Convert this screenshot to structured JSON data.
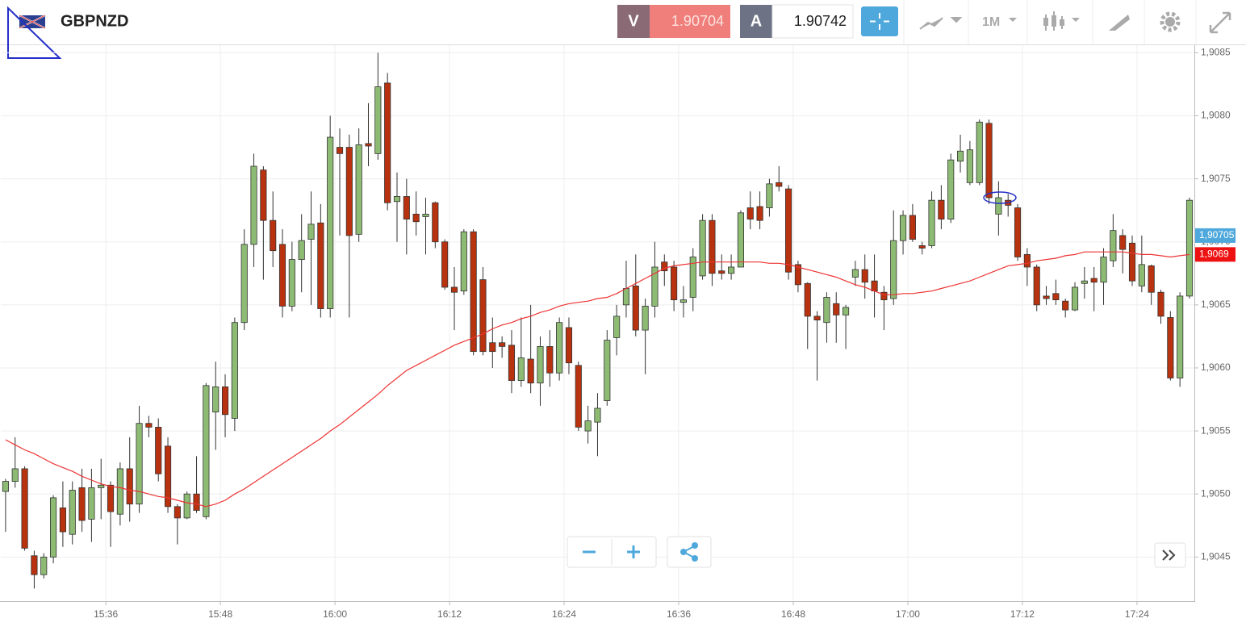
{
  "header": {
    "symbol": "GBPNZD",
    "bid_label": "V",
    "bid": "1.90704",
    "ask_label": "A",
    "ask": "1.90742",
    "timeframe": "1M"
  },
  "chart_data": {
    "type": "candlestick",
    "categories": [
      null,
      null,
      null,
      null,
      null,
      null,
      null,
      null,
      null,
      null,
      null,
      "15:36",
      null,
      null,
      null,
      null,
      null,
      null,
      null,
      null,
      null,
      null,
      null,
      "15:48",
      null,
      null,
      null,
      null,
      null,
      null,
      null,
      null,
      null,
      null,
      null,
      "16:00",
      null,
      null,
      null,
      null,
      null,
      null,
      null,
      null,
      null,
      null,
      null,
      "16:12",
      null,
      null,
      null,
      null,
      null,
      null,
      null,
      null,
      null,
      null,
      null,
      "16:24",
      null,
      null,
      null,
      null,
      null,
      null,
      null,
      null,
      null,
      null,
      null,
      "16:36",
      null,
      null,
      null,
      null,
      null,
      null,
      null,
      null,
      null,
      null,
      null,
      "16:48",
      null,
      null,
      null,
      null,
      null,
      null,
      null,
      null,
      null,
      null,
      null,
      "17:00",
      null,
      null,
      null,
      null,
      null,
      null,
      null,
      null,
      null,
      null,
      null,
      "17:12",
      null,
      null,
      null,
      null,
      null,
      null,
      null,
      null,
      null,
      null,
      null,
      "17:24",
      null,
      null,
      null,
      null,
      null
    ],
    "open": [
      1.90502,
      1.9051,
      1.9052,
      1.90451,
      1.90436,
      1.9045,
      1.90489,
      1.90468,
      1.90505,
      1.9048,
      1.90505,
      1.90507,
      1.90484,
      1.9052,
      1.90492,
      1.90556,
      1.90553,
      1.90538,
      1.9049,
      1.90481,
      1.905,
      1.90482,
      1.90565,
      1.90585,
      1.9056,
      1.90636,
      1.90698,
      1.90757,
      1.90717,
      1.90698,
      1.90649,
      1.90686,
      1.90702,
      1.90715,
      1.90647,
      1.90775,
      1.90775,
      1.90706,
      1.90778,
      1.9077,
      1.90826,
      1.90732,
      1.90736,
      1.90722,
      1.9072,
      1.90731,
      1.907,
      1.90664,
      1.90661,
      1.90708,
      1.9067,
      1.9062,
      1.9062,
      1.90618,
      1.9059,
      1.90607,
      1.90588,
      1.90617,
      1.90596,
      1.90632,
      1.90602,
      1.9055,
      1.90557,
      1.90574,
      1.90624,
      1.9065,
      1.90665,
      1.9063,
      1.90649,
      1.90684,
      1.9068,
      1.90652,
      1.90656,
      1.90673,
      1.90717,
      1.90677,
      1.90675,
      1.9068,
      1.90727,
      1.90728,
      1.90727,
      1.90747,
      1.90742,
      1.90682,
      1.90667,
      1.90641,
      1.90636,
      1.90651,
      1.90642,
      1.90672,
      1.90678,
      1.90669,
      1.9066,
      1.90655,
      1.90701,
      1.90721,
      1.90697,
      1.90697,
      1.90733,
      1.90718,
      1.90764,
      1.90747,
      1.90747,
      1.90794,
      1.90722,
      1.90733,
      1.90727,
      1.9069,
      1.9068,
      1.90657,
      1.90659,
      1.90653,
      1.90646,
      1.90667,
      1.90671,
      1.90668,
      1.90685,
      1.90705,
      1.90699,
      1.90665,
      1.90681,
      1.9066,
      1.9064,
      1.90592,
      1.90657
    ],
    "high": [
      1.90512,
      1.90545,
      1.90522,
      1.90455,
      1.90453,
      1.90499,
      1.9051,
      1.9051,
      1.9052,
      1.9052,
      1.90528,
      1.9051,
      1.90525,
      1.90545,
      1.9057,
      1.90562,
      1.9056,
      1.90545,
      1.90492,
      1.90502,
      1.9053,
      1.90588,
      1.90605,
      1.90595,
      1.9064,
      1.9071,
      1.9077,
      1.9076,
      1.9074,
      1.9071,
      1.907,
      1.90722,
      1.9074,
      1.9073,
      1.908,
      1.9079,
      1.90785,
      1.9079,
      1.9081,
      1.9085,
      1.90834,
      1.90755,
      1.9075,
      1.9074,
      1.90735,
      1.90732,
      1.90702,
      1.9068,
      1.9071,
      1.9071,
      1.9068,
      1.9064,
      1.90625,
      1.9063,
      1.9064,
      1.9065,
      1.90625,
      1.9063,
      1.9064,
      1.9064,
      1.90605,
      1.9057,
      1.9058,
      1.9063,
      1.9065,
      1.90685,
      1.9069,
      1.90655,
      1.907,
      1.9069,
      1.90685,
      1.90665,
      1.90695,
      1.90722,
      1.90722,
      1.9069,
      1.9069,
      1.90725,
      1.9074,
      1.9074,
      1.9075,
      1.9076,
      1.90745,
      1.90685,
      1.90668,
      1.90645,
      1.9066,
      1.9066,
      1.9065,
      1.90685,
      1.9069,
      1.9069,
      1.90665,
      1.90725,
      1.90725,
      1.9073,
      1.907,
      1.9074,
      1.90745,
      1.9077,
      1.90785,
      1.9078,
      1.90797,
      1.90797,
      1.90748,
      1.90738,
      1.9073,
      1.90695,
      1.90682,
      1.90665,
      1.9067,
      1.90655,
      1.90668,
      1.9068,
      1.9068,
      1.90695,
      1.90722,
      1.9071,
      1.90705,
      1.90705,
      1.90682,
      1.90662,
      1.90645,
      1.9066,
      1.90735
    ],
    "low": [
      1.9047,
      1.90505,
      1.90455,
      1.90425,
      1.90433,
      1.90445,
      1.90458,
      1.9046,
      1.9047,
      1.90462,
      1.9048,
      1.90458,
      1.90475,
      1.90478,
      1.90485,
      1.90545,
      1.9051,
      1.90485,
      1.9046,
      1.9048,
      1.90485,
      1.9048,
      1.90535,
      1.90545,
      1.9055,
      1.9063,
      1.9068,
      1.9067,
      1.9068,
      1.9064,
      1.90645,
      1.9066,
      1.9065,
      1.9064,
      1.9064,
      1.90705,
      1.9064,
      1.907,
      1.9076,
      1.90765,
      1.90725,
      1.907,
      1.9069,
      1.90705,
      1.9069,
      1.90695,
      1.90662,
      1.9063,
      1.90658,
      1.9061,
      1.9061,
      1.906,
      1.90608,
      1.9058,
      1.90585,
      1.9058,
      1.9057,
      1.90585,
      1.9059,
      1.90595,
      1.9055,
      1.9054,
      1.9053,
      1.9057,
      1.9061,
      1.9064,
      1.90625,
      1.90595,
      1.9064,
      1.90665,
      1.90645,
      1.9064,
      1.90645,
      1.9067,
      1.90665,
      1.9067,
      1.9067,
      1.9068,
      1.9071,
      1.9071,
      1.9072,
      1.9074,
      1.9067,
      1.9066,
      1.90615,
      1.9059,
      1.9062,
      1.9062,
      1.90615,
      1.90665,
      1.90655,
      1.9064,
      1.9063,
      1.9065,
      1.9069,
      1.907,
      1.9069,
      1.90695,
      1.9071,
      1.90715,
      1.90755,
      1.90745,
      1.90745,
      1.9073,
      1.90705,
      1.9072,
      1.90685,
      1.90665,
      1.90645,
      1.9065,
      1.9065,
      1.9064,
      1.90645,
      1.90655,
      1.90645,
      1.9065,
      1.9068,
      1.90675,
      1.90665,
      1.9066,
      1.9065,
      1.90635,
      1.9059,
      1.90585,
      1.90655
    ],
    "close": [
      1.9051,
      1.9052,
      1.90457,
      1.90436,
      1.9045,
      1.90497,
      1.9047,
      1.90503,
      1.90479,
      1.90505,
      1.90507,
      1.90486,
      1.9052,
      1.90492,
      1.90556,
      1.90553,
      1.90516,
      1.9049,
      1.90481,
      1.905,
      1.90487,
      1.90586,
      1.90585,
      1.90563,
      1.90636,
      1.90698,
      1.9076,
      1.90717,
      1.90693,
      1.90649,
      1.90686,
      1.90701,
      1.90714,
      1.90647,
      1.90783,
      1.9077,
      1.90705,
      1.90777,
      1.90776,
      1.90823,
      1.90731,
      1.90736,
      1.90718,
      1.90716,
      1.90722,
      1.907,
      1.90664,
      1.9066,
      1.90708,
      1.90613,
      1.90613,
      1.90613,
      1.90617,
      1.9059,
      1.90608,
      1.90588,
      1.90617,
      1.90596,
      1.90636,
      1.90604,
      1.90553,
      1.90558,
      1.90568,
      1.90622,
      1.90641,
      1.90663,
      1.9063,
      1.90649,
      1.9068,
      1.90677,
      1.90654,
      1.90654,
      1.90688,
      1.90717,
      1.90675,
      1.90675,
      1.9068,
      1.90723,
      1.90718,
      1.90717,
      1.90746,
      1.90744,
      1.90676,
      1.90666,
      1.90641,
      1.90638,
      1.90656,
      1.90642,
      1.90648,
      1.90678,
      1.90668,
      1.90661,
      1.90654,
      1.90701,
      1.90721,
      1.90702,
      1.90695,
      1.90733,
      1.90718,
      1.90765,
      1.90772,
      1.90773,
      1.90795,
      1.90735,
      1.90735,
      1.90729,
      1.90688,
      1.9068,
      1.9065,
      1.90655,
      1.90654,
      1.90646,
      1.90664,
      1.90669,
      1.90668,
      1.90688,
      1.90709,
      1.90694,
      1.90669,
      1.90682,
      1.9066,
      1.90641,
      1.90592,
      1.90657,
      1.90733
    ],
    "up_color": "#8dbb74",
    "down_color": "#b8320f",
    "overlay": {
      "type": "line",
      "color": "#ee3333",
      "values": [
        1.90543,
        1.90539,
        1.90535,
        1.90532,
        1.90528,
        1.90524,
        1.90521,
        1.90518,
        1.90514,
        1.90511,
        1.90508,
        1.90506,
        1.90505,
        1.90503,
        1.90502,
        1.905,
        1.90498,
        1.90497,
        1.90495,
        1.90493,
        1.90492,
        1.9049,
        1.90492,
        1.90495,
        1.905,
        1.90504,
        1.90509,
        1.90514,
        1.90519,
        1.90524,
        1.90529,
        1.90534,
        1.90539,
        1.90544,
        1.9055,
        1.90555,
        1.90561,
        1.90567,
        1.90573,
        1.90579,
        1.90586,
        1.90592,
        1.90598,
        1.90602,
        1.90606,
        1.9061,
        1.90614,
        1.90618,
        1.90621,
        1.90624,
        1.90627,
        1.90631,
        1.90634,
        1.90636,
        1.90639,
        1.90641,
        1.90644,
        1.90646,
        1.90649,
        1.90651,
        1.90652,
        1.90653,
        1.90655,
        1.90656,
        1.90659,
        1.90663,
        1.90667,
        1.90671,
        1.90675,
        1.90679,
        1.90681,
        1.90682,
        1.90683,
        1.90684,
        1.90684,
        1.90684,
        1.90684,
        1.90684,
        1.90684,
        1.90684,
        1.90683,
        1.90683,
        1.90682,
        1.9068,
        1.90678,
        1.90676,
        1.90674,
        1.90672,
        1.90669,
        1.90666,
        1.90664,
        1.90661,
        1.90658,
        1.90658,
        1.90659,
        1.90659,
        1.9066,
        1.90661,
        1.90663,
        1.90665,
        1.90667,
        1.90669,
        1.90672,
        1.90675,
        1.90678,
        1.90681,
        1.90682,
        1.90683,
        1.90685,
        1.90686,
        1.90687,
        1.90689,
        1.9069,
        1.90692,
        1.90692,
        1.90692,
        1.90692,
        1.90692,
        1.90691,
        1.9069,
        1.9069,
        1.90689,
        1.90688,
        1.90689,
        1.9069
      ]
    },
    "price_tags": [
      {
        "value": 1.90705,
        "label": "1,90705",
        "color": "#4ea8dc"
      },
      {
        "value": 1.9069,
        "label": "1,9069",
        "color": "#ee1111"
      }
    ],
    "ylim": [
      1.90415,
      1.90856
    ],
    "yticks": [
      {
        "value": 1.9045,
        "label": "1,9045"
      },
      {
        "value": 1.905,
        "label": "1,9050"
      },
      {
        "value": 1.9055,
        "label": "1,9055"
      },
      {
        "value": 1.906,
        "label": "1,9060"
      },
      {
        "value": 1.9065,
        "label": "1,9065"
      },
      {
        "value": 1.907,
        "label": "1,9070"
      },
      {
        "value": 1.9075,
        "label": "1,9075"
      },
      {
        "value": 1.908,
        "label": "1,9080"
      },
      {
        "value": 1.9085,
        "label": "1,9085"
      }
    ],
    "grid": true
  }
}
